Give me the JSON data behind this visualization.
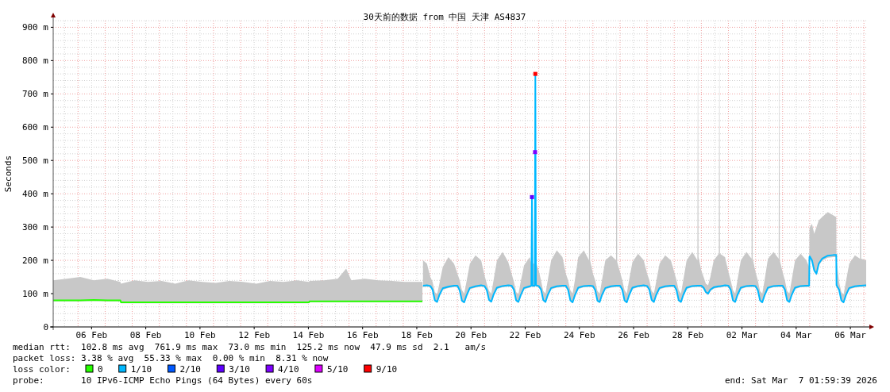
{
  "chart_data": {
    "type": "line",
    "title": "30天前的数据 from 中国 天津 AS4837",
    "ylabel": "Seconds",
    "xlim": [
      "2026-02-05T02:00",
      "2026-03-07T02:00"
    ],
    "ylim": [
      0,
      920
    ],
    "yticks": [
      0,
      {
        "value": 100,
        "label": "100 m"
      },
      {
        "value": 200,
        "label": "200 m"
      },
      {
        "value": 300,
        "label": "300 m"
      },
      {
        "value": 400,
        "label": "400 m"
      },
      {
        "value": 500,
        "label": "500 m"
      },
      {
        "value": 600,
        "label": "600 m"
      },
      {
        "value": 700,
        "label": "700 m"
      },
      {
        "value": 800,
        "label": "800 m"
      },
      {
        "value": 900,
        "label": "900 m"
      }
    ],
    "xticks": [
      {
        "value": "2026-02-06T12:00",
        "label": "06 Feb"
      },
      {
        "value": "2026-02-08T12:00",
        "label": "08 Feb"
      },
      {
        "value": "2026-02-10T12:00",
        "label": "10 Feb"
      },
      {
        "value": "2026-02-12T12:00",
        "label": "12 Feb"
      },
      {
        "value": "2026-02-14T12:00",
        "label": "14 Feb"
      },
      {
        "value": "2026-02-16T12:00",
        "label": "16 Feb"
      },
      {
        "value": "2026-02-18T12:00",
        "label": "18 Feb"
      },
      {
        "value": "2026-02-20T12:00",
        "label": "20 Feb"
      },
      {
        "value": "2026-02-22T12:00",
        "label": "22 Feb"
      },
      {
        "value": "2026-02-24T12:00",
        "label": "24 Feb"
      },
      {
        "value": "2026-02-26T12:00",
        "label": "26 Feb"
      },
      {
        "value": "2026-02-28T12:00",
        "label": "28 Feb"
      },
      {
        "value": "2026-03-02T12:00",
        "label": "02 Mar"
      },
      {
        "value": "2026-03-04T12:00",
        "label": "04 Mar"
      },
      {
        "value": "2026-03-06T12:00",
        "label": "06 Mar"
      }
    ],
    "grid": true,
    "legend": "bottom",
    "legend_title": "loss color:",
    "series": [
      {
        "name": "0",
        "color": "#26ff00",
        "x": [
          "2026-02-05T02:00",
          "2026-02-05T14:00",
          "2026-02-06T02:00",
          "2026-02-06T14:00",
          "2026-02-07T02:00",
          "2026-02-07T13:30",
          "2026-02-07T14:00",
          "2026-02-08T02:00",
          "2026-02-08T14:00",
          "2026-02-09T02:00",
          "2026-02-09T14:00",
          "2026-02-10T02:00",
          "2026-02-10T14:00",
          "2026-02-11T02:00",
          "2026-02-11T14:00",
          "2026-02-12T02:00",
          "2026-02-12T14:00",
          "2026-02-13T02:00",
          "2026-02-13T14:00",
          "2026-02-14T02:00",
          "2026-02-14T12:30",
          "2026-02-14T13:00",
          "2026-02-15T02:00",
          "2026-02-15T14:00",
          "2026-02-15T21:30",
          "2026-02-16T02:00",
          "2026-02-16T14:00",
          "2026-02-17T02:00",
          "2026-02-17T14:00",
          "2026-02-18T02:00",
          "2026-02-18T17:00"
        ],
        "values": [
          80,
          80,
          80,
          81,
          80,
          80,
          74,
          74,
          74,
          74,
          74,
          74,
          74,
          74,
          74,
          74,
          74,
          74,
          74,
          74,
          74,
          77,
          77,
          77,
          77,
          77,
          77,
          77,
          77,
          77,
          77
        ],
        "lower": [
          77,
          77,
          77,
          78,
          77,
          77,
          71,
          71,
          71,
          71,
          71,
          71,
          71,
          71,
          71,
          71,
          71,
          71,
          71,
          71,
          71,
          74,
          74,
          74,
          74,
          74,
          74,
          74,
          74,
          74,
          74
        ],
        "upper": [
          140,
          145,
          150,
          140,
          145,
          135,
          130,
          140,
          135,
          138,
          130,
          140,
          135,
          132,
          138,
          135,
          130,
          138,
          135,
          140,
          135,
          138,
          140,
          145,
          175,
          140,
          145,
          140,
          138,
          135,
          135
        ]
      },
      {
        "name": "1/10",
        "color": "#00b8ff",
        "x": [
          "2026-02-18T17:30",
          "2026-02-18T21:00",
          "2026-02-19T00:00",
          "2026-02-19T02:00",
          "2026-02-19T04:00",
          "2026-02-19T06:00",
          "2026-02-19T08:00",
          "2026-02-19T11:00",
          "2026-02-19T16:00",
          "2026-02-19T21:00",
          "2026-02-20T00:00",
          "2026-02-20T02:00",
          "2026-02-20T04:00",
          "2026-02-20T06:00",
          "2026-02-20T08:00",
          "2026-02-20T11:00",
          "2026-02-20T16:00",
          "2026-02-20T21:00",
          "2026-02-21T00:00",
          "2026-02-21T02:00",
          "2026-02-21T04:00",
          "2026-02-21T06:00",
          "2026-02-21T08:00",
          "2026-02-21T11:00",
          "2026-02-21T16:00",
          "2026-02-21T21:00",
          "2026-02-22T00:00",
          "2026-02-22T02:00",
          "2026-02-22T04:00",
          "2026-02-22T06:00",
          "2026-02-22T08:00",
          "2026-02-22T11:00",
          "2026-02-22T16:00",
          "2026-02-22T17:30",
          "2026-02-22T18:00",
          "2026-02-22T18:30",
          "2026-02-22T20:30",
          "2026-02-22T21:00",
          "2026-02-22T21:30",
          "2026-02-23T00:00",
          "2026-02-23T02:00",
          "2026-02-23T04:00",
          "2026-02-23T06:00",
          "2026-02-23T08:00",
          "2026-02-23T11:00",
          "2026-02-23T16:00",
          "2026-02-23T21:00",
          "2026-02-24T00:00",
          "2026-02-24T02:00",
          "2026-02-24T04:00",
          "2026-02-24T06:00",
          "2026-02-24T08:00",
          "2026-02-24T11:00",
          "2026-02-24T16:00",
          "2026-02-24T20:30",
          "2026-02-24T21:00",
          "2026-02-24T21:30",
          "2026-02-25T00:00",
          "2026-02-25T02:00",
          "2026-02-25T04:00",
          "2026-02-25T06:00",
          "2026-02-25T08:00",
          "2026-02-25T11:00",
          "2026-02-25T16:00",
          "2026-02-25T20:30",
          "2026-02-25T21:00",
          "2026-02-25T21:30",
          "2026-02-26T00:00",
          "2026-02-26T02:00",
          "2026-02-26T04:00",
          "2026-02-26T06:00",
          "2026-02-26T08:00",
          "2026-02-26T11:00",
          "2026-02-26T16:00",
          "2026-02-26T21:00",
          "2026-02-27T00:00",
          "2026-02-27T02:00",
          "2026-02-27T04:00",
          "2026-02-27T06:00",
          "2026-02-27T08:00",
          "2026-02-27T11:00",
          "2026-02-27T16:00",
          "2026-02-27T21:00",
          "2026-02-28T00:00",
          "2026-02-28T02:00",
          "2026-02-28T04:00",
          "2026-02-28T06:00",
          "2026-02-28T08:00",
          "2026-02-28T11:00",
          "2026-02-28T16:00",
          "2026-02-28T20:30",
          "2026-02-28T21:00",
          "2026-02-28T21:30",
          "2026-03-01T00:00",
          "2026-03-01T02:00",
          "2026-03-01T04:00",
          "2026-03-01T06:00",
          "2026-03-01T08:00",
          "2026-03-01T11:00",
          "2026-03-01T15:30",
          "2026-03-01T16:00",
          "2026-03-01T16:30",
          "2026-03-01T21:00",
          "2026-03-02T00:00",
          "2026-03-02T02:00",
          "2026-03-02T04:00",
          "2026-03-02T06:00",
          "2026-03-02T08:00",
          "2026-03-02T11:00",
          "2026-03-02T16:00",
          "2026-03-02T20:30",
          "2026-03-02T21:00",
          "2026-03-02T21:30",
          "2026-03-03T00:00",
          "2026-03-03T02:00",
          "2026-03-03T04:00",
          "2026-03-03T06:00",
          "2026-03-03T08:00",
          "2026-03-03T11:00",
          "2026-03-03T16:00",
          "2026-03-03T20:30",
          "2026-03-03T21:00",
          "2026-03-03T21:30",
          "2026-03-04T00:00",
          "2026-03-04T02:00",
          "2026-03-04T04:00",
          "2026-03-04T06:00",
          "2026-03-04T08:00",
          "2026-03-04T11:00",
          "2026-03-04T16:00",
          "2026-03-04T21:00",
          "2026-03-04T23:30",
          "2026-03-04T23:45",
          "2026-03-05T00:00",
          "2026-03-05T02:00",
          "2026-03-05T04:00",
          "2026-03-05T06:00",
          "2026-03-05T08:00",
          "2026-03-05T11:00",
          "2026-03-05T16:00",
          "2026-03-05T21:00",
          "2026-03-05T23:30",
          "2026-03-05T23:45",
          "2026-03-06T02:00",
          "2026-03-06T04:00",
          "2026-03-06T06:00",
          "2026-03-06T08:00",
          "2026-03-06T11:00",
          "2026-03-06T16:00",
          "2026-03-06T20:30",
          "2026-03-06T21:00",
          "2026-03-06T21:30",
          "2026-03-07T02:00"
        ],
        "values": [
          124,
          125,
          123,
          112,
          80,
          75,
          96,
          116,
          121,
          124,
          124,
          110,
          79,
          74,
          94,
          117,
          122,
          125,
          123,
          111,
          81,
          76,
          97,
          118,
          123,
          125,
          124,
          112,
          80,
          75,
          95,
          117,
          122,
          124,
          390,
          124,
          124,
          760,
          125,
          123,
          113,
          81,
          75,
          96,
          117,
          122,
          124,
          124,
          112,
          80,
          74,
          95,
          118,
          123,
          124,
          124,
          124,
          123,
          111,
          79,
          75,
          96,
          117,
          122,
          124,
          124,
          124,
          124,
          112,
          80,
          74,
          95,
          118,
          123,
          125,
          123,
          112,
          81,
          75,
          96,
          117,
          122,
          124,
          124,
          111,
          80,
          75,
          96,
          118,
          123,
          124,
          124,
          124,
          124,
          118,
          105,
          100,
          112,
          119,
          122,
          122,
          122,
          125,
          124,
          112,
          80,
          75,
          96,
          118,
          123,
          124,
          124,
          124,
          123,
          111,
          80,
          74,
          95,
          118,
          123,
          124,
          124,
          124,
          124,
          112,
          80,
          75,
          96,
          118,
          123,
          124,
          124,
          210,
          212,
          200,
          170,
          160,
          190,
          205,
          214,
          216,
          216,
          125,
          112,
          80,
          74,
          95,
          117,
          122,
          124,
          124,
          124,
          125
        ],
        "lower": [
          120,
          121,
          119,
          107,
          76,
          72,
          91,
          112,
          117,
          120,
          120,
          105,
          75,
          71,
          90,
          113,
          118,
          121,
          119,
          106,
          77,
          73,
          92,
          114,
          119,
          121,
          120,
          107,
          76,
          72,
          91,
          113,
          118,
          120,
          380,
          120,
          120,
          750,
          121,
          119,
          108,
          77,
          72,
          91,
          113,
          118,
          120,
          120,
          107,
          76,
          71,
          90,
          114,
          119,
          120,
          120,
          120,
          119,
          106,
          75,
          72,
          91,
          113,
          118,
          120,
          120,
          120,
          120,
          107,
          76,
          71,
          90,
          114,
          119,
          121,
          119,
          107,
          77,
          72,
          91,
          113,
          118,
          120,
          120,
          106,
          76,
          72,
          91,
          114,
          119,
          120,
          120,
          120,
          120,
          113,
          100,
          96,
          107,
          115,
          118,
          118,
          118,
          121,
          120,
          107,
          76,
          72,
          91,
          114,
          119,
          120,
          120,
          120,
          119,
          106,
          76,
          71,
          90,
          114,
          119,
          120,
          120,
          120,
          120,
          107,
          76,
          72,
          91,
          114,
          119,
          120,
          120,
          203,
          205,
          193,
          165,
          155,
          184,
          199,
          208,
          210,
          210,
          120,
          107,
          76,
          71,
          90,
          113,
          118,
          120,
          120,
          120,
          121
        ],
        "upper": [
          200,
          190,
          150,
          135,
          105,
          98,
          130,
          180,
          210,
          190,
          160,
          140,
          110,
          100,
          135,
          190,
          215,
          200,
          155,
          130,
          108,
          100,
          140,
          200,
          225,
          195,
          160,
          135,
          105,
          98,
          135,
          185,
          210,
          190,
          400,
          190,
          190,
          770,
          195,
          170,
          140,
          108,
          100,
          140,
          200,
          230,
          210,
          160,
          140,
          110,
          100,
          140,
          210,
          230,
          200,
          920,
          200,
          160,
          140,
          108,
          100,
          140,
          200,
          215,
          200,
          920,
          195,
          165,
          140,
          110,
          100,
          140,
          195,
          220,
          200,
          160,
          140,
          108,
          100,
          135,
          190,
          215,
          200,
          165,
          140,
          110,
          100,
          140,
          200,
          225,
          200,
          920,
          210,
          170,
          150,
          130,
          125,
          150,
          200,
          220,
          920,
          220,
          210,
          165,
          140,
          110,
          100,
          140,
          200,
          225,
          205,
          920,
          205,
          165,
          140,
          108,
          100,
          140,
          205,
          225,
          205,
          920,
          200,
          165,
          140,
          108,
          100,
          140,
          200,
          220,
          200,
          180,
          290,
          300,
          310,
          280,
          300,
          320,
          330,
          345,
          335,
          330,
          200,
          135,
          105,
          98,
          135,
          190,
          215,
          205,
          920,
          205,
          200
        ]
      },
      {
        "name": "2/10",
        "color": "#0059ff"
      },
      {
        "name": "3/10",
        "color": "#5e00ff",
        "marker": "square",
        "x": [
          "2026-02-22T18:00"
        ],
        "values": [
          390
        ]
      },
      {
        "name": "4/10",
        "color": "#7e00ff",
        "marker": "square",
        "x": [
          "2026-02-22T20:45"
        ],
        "values": [
          525
        ]
      },
      {
        "name": "5/10",
        "color": "#dd00ff"
      },
      {
        "name": "9/10",
        "color": "#ff0000",
        "marker": "square",
        "x": [
          "2026-02-22T21:00"
        ],
        "values": [
          760
        ]
      }
    ],
    "annotations": [
      "median rtt:  102.8 ms avg  761.9 ms max  73.0 ms min  125.2 ms now  47.9 ms sd  2.1   am/s",
      "packet loss: 3.38 % avg  55.33 % max  0.00 % min  8.31 % now",
      "probe:       10 IPv6-ICMP Echo Pings (64 Bytes) every 60s",
      "end: Sat Mar  7 01:59:39 2026"
    ]
  }
}
